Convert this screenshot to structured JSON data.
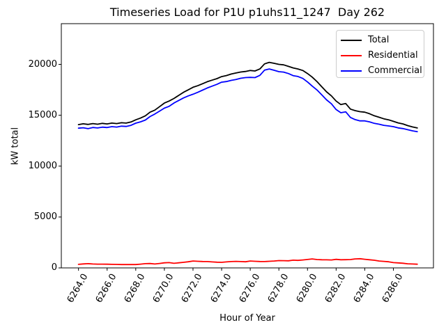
{
  "chart_data": {
    "type": "line",
    "title": "Timeseries Load for P1U p1uhs11_1247  Day 262",
    "xlabel": "Hour of Year",
    "ylabel": "kW total",
    "xlim": [
      6262.8,
      6288.8
    ],
    "ylim": [
      0,
      24000
    ],
    "grid": false,
    "legend_position": "upper right",
    "xticks": {
      "values": [
        6264,
        6266,
        6268,
        6270,
        6272,
        6274,
        6276,
        6278,
        6280,
        6282,
        6284,
        6286
      ],
      "labels": [
        "6264.0",
        "6266.0",
        "6268.0",
        "6270.0",
        "6272.0",
        "6274.0",
        "6276.0",
        "6278.0",
        "6280.0",
        "6282.0",
        "6284.0",
        "6286.0"
      ]
    },
    "yticks": {
      "values": [
        0,
        5000,
        10000,
        15000,
        20000
      ],
      "labels": [
        "0",
        "5000",
        "10000",
        "15000",
        "20000"
      ]
    },
    "x": [
      6264.0,
      6264.33,
      6264.67,
      6265.0,
      6265.33,
      6265.67,
      6266.0,
      6266.33,
      6266.67,
      6267.0,
      6267.33,
      6267.67,
      6268.0,
      6268.33,
      6268.67,
      6269.0,
      6269.33,
      6269.67,
      6270.0,
      6270.33,
      6270.67,
      6271.0,
      6271.33,
      6271.67,
      6272.0,
      6272.33,
      6272.67,
      6273.0,
      6273.33,
      6273.67,
      6274.0,
      6274.33,
      6274.67,
      6275.0,
      6275.33,
      6275.67,
      6276.0,
      6276.33,
      6276.67,
      6277.0,
      6277.33,
      6277.67,
      6278.0,
      6278.33,
      6278.67,
      6279.0,
      6279.33,
      6279.67,
      6280.0,
      6280.33,
      6280.67,
      6281.0,
      6281.33,
      6281.67,
      6282.0,
      6282.33,
      6282.67,
      6283.0,
      6283.33,
      6283.67,
      6284.0,
      6284.33,
      6284.67,
      6285.0,
      6285.33,
      6285.67,
      6286.0,
      6286.33,
      6286.67,
      6287.0,
      6287.33,
      6287.67
    ],
    "series": [
      {
        "name": "Total",
        "color": "#000000",
        "values": [
          14080,
          14160,
          14100,
          14180,
          14120,
          14200,
          14150,
          14230,
          14180,
          14260,
          14230,
          14340,
          14550,
          14720,
          14950,
          15300,
          15500,
          15850,
          16200,
          16400,
          16650,
          16950,
          17250,
          17500,
          17750,
          17900,
          18100,
          18300,
          18450,
          18600,
          18800,
          18900,
          19050,
          19150,
          19250,
          19300,
          19400,
          19350,
          19550,
          20050,
          20200,
          20100,
          20000,
          19950,
          19800,
          19650,
          19550,
          19400,
          19100,
          18750,
          18300,
          17800,
          17300,
          16900,
          16400,
          16050,
          16150,
          15600,
          15450,
          15350,
          15300,
          15150,
          14950,
          14800,
          14650,
          14550,
          14400,
          14250,
          14150,
          13980,
          13850,
          13750
        ]
      },
      {
        "name": "Residential",
        "color": "#ff0000",
        "values": [
          350,
          390,
          420,
          380,
          370,
          370,
          360,
          350,
          340,
          330,
          330,
          330,
          330,
          370,
          420,
          430,
          380,
          440,
          500,
          520,
          450,
          500,
          550,
          600,
          680,
          650,
          630,
          620,
          590,
          560,
          550,
          590,
          620,
          640,
          620,
          600,
          680,
          650,
          630,
          620,
          650,
          680,
          720,
          710,
          700,
          760,
          740,
          780,
          830,
          880,
          820,
          800,
          790,
          780,
          840,
          800,
          810,
          820,
          880,
          900,
          850,
          800,
          750,
          680,
          640,
          600,
          520,
          490,
          460,
          400,
          380,
          360
        ]
      },
      {
        "name": "Commercial",
        "color": "#0000ff",
        "values": [
          13730,
          13770,
          13680,
          13800,
          13750,
          13830,
          13790,
          13880,
          13840,
          13930,
          13900,
          14010,
          14220,
          14350,
          14530,
          14870,
          15120,
          15410,
          15700,
          15880,
          16200,
          16450,
          16700,
          16900,
          17070,
          17250,
          17470,
          17680,
          17860,
          18040,
          18250,
          18310,
          18430,
          18510,
          18630,
          18700,
          18720,
          18700,
          18920,
          19430,
          19550,
          19420,
          19280,
          19240,
          19100,
          18890,
          18810,
          18620,
          18270,
          17870,
          17480,
          17000,
          16510,
          16120,
          15560,
          15250,
          15340,
          14780,
          14570,
          14450,
          14450,
          14350,
          14200,
          14120,
          14010,
          13950,
          13880,
          13760,
          13690,
          13580,
          13470,
          13390
        ]
      }
    ]
  }
}
